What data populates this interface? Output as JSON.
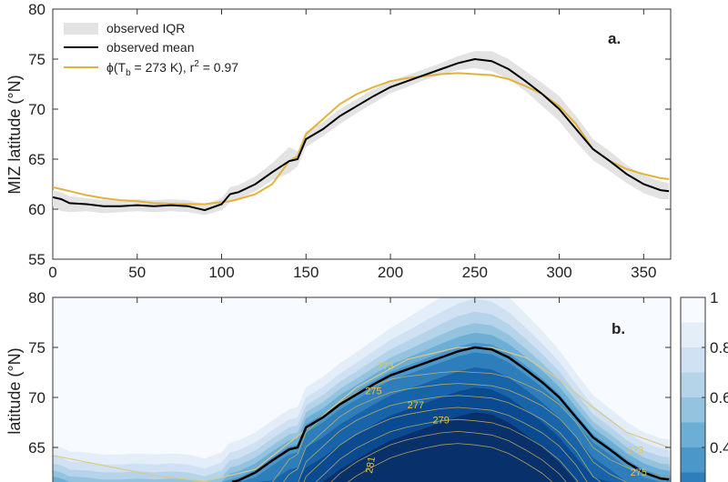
{
  "chart_data": [
    {
      "type": "line",
      "panel_label": "a.",
      "ylabel": "MIZ latitude (°N)",
      "xlim": [
        0,
        366
      ],
      "ylim": [
        55,
        80
      ],
      "xticks": [
        0,
        50,
        100,
        150,
        200,
        250,
        300,
        350
      ],
      "yticks": [
        55,
        60,
        65,
        70,
        75,
        80
      ],
      "legend_placement": "top-left",
      "legend": {
        "iqr": "observed IQR",
        "mean": "observed mean",
        "model_prefix": "ϕ(T",
        "model_sub": "b",
        "model_mid": " = 273 K), r",
        "model_sup": "2",
        "model_suffix": " = 0.97"
      },
      "colors": {
        "iqr": "#e3e3e3",
        "mean": "#000000",
        "model": "#e3b23c"
      },
      "x": [
        0,
        5,
        10,
        20,
        30,
        40,
        50,
        60,
        70,
        80,
        90,
        100,
        105,
        110,
        120,
        130,
        140,
        145,
        150,
        160,
        170,
        180,
        190,
        200,
        210,
        220,
        230,
        240,
        250,
        260,
        270,
        280,
        290,
        300,
        310,
        320,
        330,
        340,
        350,
        360,
        365
      ],
      "series": [
        {
          "key": "mean",
          "values": [
            61.2,
            61.0,
            60.6,
            60.5,
            60.3,
            60.3,
            60.4,
            60.3,
            60.4,
            60.3,
            59.9,
            60.5,
            61.5,
            61.7,
            62.5,
            63.7,
            64.8,
            65.0,
            67.0,
            68.0,
            69.3,
            70.3,
            71.3,
            72.2,
            72.8,
            73.4,
            74.0,
            74.6,
            75.0,
            74.8,
            74.0,
            72.8,
            71.5,
            70.0,
            68.0,
            66.0,
            64.8,
            63.5,
            62.5,
            61.9,
            61.8
          ]
        },
        {
          "key": "iqr_low",
          "values": [
            60.3,
            59.8,
            59.7,
            59.8,
            59.6,
            59.7,
            59.8,
            59.7,
            59.8,
            59.7,
            59.4,
            59.9,
            60.7,
            61.0,
            61.8,
            62.9,
            63.6,
            64.3,
            66.2,
            67.3,
            68.5,
            69.6,
            70.6,
            71.6,
            72.2,
            72.9,
            73.4,
            73.9,
            74.1,
            73.8,
            73.0,
            71.8,
            70.3,
            68.8,
            66.7,
            64.9,
            63.8,
            62.6,
            61.6,
            61.0,
            61.0
          ]
        },
        {
          "key": "iqr_high",
          "values": [
            61.9,
            61.7,
            61.3,
            61.1,
            60.9,
            60.9,
            61.0,
            60.9,
            61.0,
            60.9,
            60.5,
            61.1,
            62.2,
            62.4,
            63.3,
            64.6,
            66.2,
            65.8,
            67.8,
            68.7,
            70.0,
            71.0,
            72.0,
            72.8,
            73.4,
            74.0,
            74.6,
            75.3,
            75.8,
            75.8,
            75.0,
            73.8,
            72.6,
            71.3,
            69.3,
            67.0,
            65.8,
            64.4,
            63.4,
            62.8,
            62.6
          ]
        },
        {
          "key": "model",
          "values": [
            62.2,
            62.0,
            61.8,
            61.4,
            61.1,
            60.9,
            60.8,
            60.6,
            60.55,
            60.5,
            60.5,
            60.7,
            60.8,
            61.0,
            61.5,
            62.5,
            64.8,
            65.3,
            67.5,
            69.0,
            70.5,
            71.5,
            72.2,
            72.8,
            73.1,
            73.3,
            73.5,
            73.6,
            73.5,
            73.4,
            73.0,
            72.3,
            71.5,
            70.3,
            68.5,
            66.0,
            64.8,
            64.0,
            63.5,
            63.1,
            63.0
          ]
        }
      ]
    },
    {
      "type": "heatmap",
      "panel_label": "b.",
      "ylabel": "latitude (°N)",
      "xlim": [
        0,
        366
      ],
      "ylim_visible": [
        61.5,
        80
      ],
      "yticks": [
        65,
        70,
        75,
        80
      ],
      "colorbar": {
        "ticks": [
          "1",
          "0.8",
          "0.6",
          "0.4"
        ],
        "range": [
          0,
          1
        ]
      },
      "colormap": [
        "#f7fbff",
        "#e3eef9",
        "#cfe1f2",
        "#b5d4e9",
        "#93c3df",
        "#6daed5",
        "#4b97c9",
        "#2f7ebc",
        "#1864aa",
        "#0a4a90",
        "#08306b"
      ],
      "contour_labels": [
        "273",
        "275",
        "277",
        "279",
        "281",
        "273",
        "275"
      ],
      "threshold_line_color": "#d9c98a",
      "threshold_line": {
        "x": [
          0,
          30,
          60,
          90,
          120,
          150,
          180,
          210,
          240,
          260,
          280,
          300,
          320,
          340,
          365
        ],
        "y": [
          64.2,
          63.2,
          62.2,
          61.6,
          62.8,
          66.8,
          71.0,
          73.8,
          75.0,
          75.0,
          74.0,
          71.8,
          69.0,
          66.5,
          65.0
        ]
      }
    }
  ]
}
